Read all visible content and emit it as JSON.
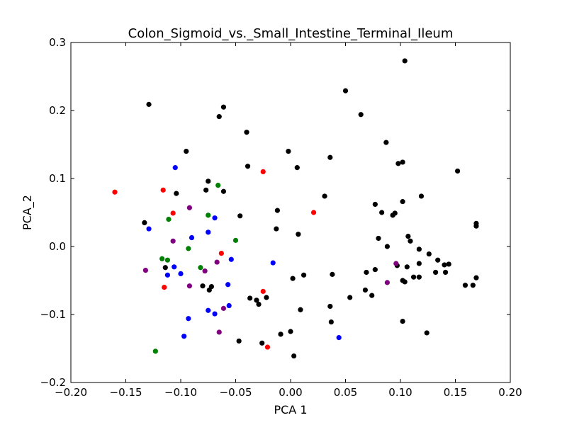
{
  "chart_data": {
    "type": "scatter",
    "title": "Colon_Sigmoid_vs._Small_Intestine_Terminal_Ileum",
    "xlabel": "PCA 1",
    "ylabel": "PCA_2",
    "xlim": [
      -0.2,
      0.2
    ],
    "ylim": [
      -0.2,
      0.3
    ],
    "xticks": [
      -0.2,
      -0.15,
      -0.1,
      -0.05,
      0.0,
      0.05,
      0.1,
      0.15,
      0.2
    ],
    "xtick_labels": [
      "−0.20",
      "−0.15",
      "−0.10",
      "−0.05",
      "0.00",
      "0.05",
      "0.10",
      "0.15",
      "0.20"
    ],
    "yticks": [
      -0.2,
      -0.1,
      0.0,
      0.1,
      0.2,
      0.3
    ],
    "ytick_labels": [
      "−0.2",
      "−0.1",
      "0.0",
      "0.1",
      "0.2",
      "0.3"
    ],
    "grid": false,
    "series": [
      {
        "color": "#000000",
        "points": [
          [
            -0.129,
            0.209
          ],
          [
            -0.061,
            0.205
          ],
          [
            -0.065,
            0.191
          ],
          [
            -0.04,
            0.168
          ],
          [
            -0.095,
            0.14
          ],
          [
            -0.075,
            0.096
          ],
          [
            -0.077,
            0.083
          ],
          [
            -0.061,
            0.081
          ],
          [
            -0.104,
            0.078
          ],
          [
            -0.039,
            0.118
          ],
          [
            -0.133,
            0.035
          ],
          [
            -0.046,
            0.045
          ],
          [
            -0.012,
            0.053
          ],
          [
            -0.013,
            0.026
          ],
          [
            0.007,
            0.018
          ],
          [
            -0.114,
            -0.031
          ],
          [
            -0.08,
            -0.058
          ],
          [
            -0.072,
            -0.059
          ],
          [
            -0.074,
            -0.064
          ],
          [
            -0.037,
            -0.076
          ],
          [
            -0.031,
            -0.079
          ],
          [
            -0.029,
            -0.085
          ],
          [
            -0.022,
            -0.075
          ],
          [
            -0.047,
            -0.139
          ],
          [
            -0.026,
            -0.142
          ],
          [
            -0.009,
            -0.129
          ],
          [
            0.0,
            -0.125
          ],
          [
            0.003,
            -0.161
          ],
          [
            0.009,
            -0.093
          ],
          [
            0.002,
            -0.047
          ],
          [
            0.012,
            -0.042
          ],
          [
            -0.002,
            0.14
          ],
          [
            0.006,
            0.116
          ],
          [
            0.036,
            0.131
          ],
          [
            0.031,
            0.074
          ],
          [
            0.05,
            0.229
          ],
          [
            0.064,
            0.194
          ],
          [
            0.087,
            0.153
          ],
          [
            0.104,
            0.273
          ],
          [
            0.098,
            0.122
          ],
          [
            0.102,
            0.124
          ],
          [
            0.152,
            0.111
          ],
          [
            0.119,
            0.074
          ],
          [
            0.102,
            0.066
          ],
          [
            0.077,
            0.062
          ],
          [
            0.083,
            0.05
          ],
          [
            0.093,
            0.046
          ],
          [
            0.095,
            0.049
          ],
          [
            0.08,
            0.012
          ],
          [
            0.088,
            0.0
          ],
          [
            0.107,
            0.015
          ],
          [
            0.109,
            0.008
          ],
          [
            0.117,
            -0.004
          ],
          [
            0.126,
            -0.011
          ],
          [
            0.134,
            -0.02
          ],
          [
            0.14,
            -0.027
          ],
          [
            0.144,
            -0.026
          ],
          [
            0.117,
            -0.025
          ],
          [
            0.106,
            -0.03
          ],
          [
            0.112,
            -0.045
          ],
          [
            0.117,
            -0.045
          ],
          [
            0.132,
            -0.038
          ],
          [
            0.141,
            -0.038
          ],
          [
            0.169,
            0.03
          ],
          [
            0.169,
            0.034
          ],
          [
            0.169,
            -0.046
          ],
          [
            0.159,
            -0.057
          ],
          [
            0.166,
            -0.057
          ],
          [
            0.102,
            -0.05
          ],
          [
            0.104,
            -0.052
          ],
          [
            0.097,
            -0.028
          ],
          [
            0.077,
            -0.034
          ],
          [
            0.069,
            -0.038
          ],
          [
            0.068,
            -0.064
          ],
          [
            0.074,
            -0.072
          ],
          [
            0.054,
            -0.075
          ],
          [
            0.038,
            -0.041
          ],
          [
            0.036,
            -0.088
          ],
          [
            0.037,
            -0.111
          ],
          [
            0.102,
            -0.11
          ],
          [
            0.124,
            -0.127
          ]
        ]
      },
      {
        "color": "#ff0000",
        "points": [
          [
            -0.16,
            0.08
          ],
          [
            -0.116,
            0.083
          ],
          [
            -0.107,
            0.049
          ],
          [
            -0.025,
            0.11
          ],
          [
            0.021,
            0.05
          ],
          [
            -0.063,
            -0.01
          ],
          [
            -0.115,
            -0.06
          ],
          [
            -0.025,
            -0.066
          ],
          [
            -0.021,
            -0.148
          ]
        ]
      },
      {
        "color": "#0000ff",
        "points": [
          [
            -0.105,
            0.116
          ],
          [
            -0.129,
            0.026
          ],
          [
            -0.069,
            0.042
          ],
          [
            -0.09,
            0.013
          ],
          [
            -0.075,
            0.021
          ],
          [
            -0.054,
            -0.019
          ],
          [
            -0.016,
            -0.024
          ],
          [
            -0.106,
            -0.03
          ],
          [
            -0.112,
            -0.042
          ],
          [
            -0.1,
            -0.04
          ],
          [
            -0.057,
            -0.056
          ],
          [
            -0.056,
            -0.087
          ],
          [
            -0.075,
            -0.094
          ],
          [
            -0.069,
            -0.099
          ],
          [
            -0.093,
            -0.106
          ],
          [
            -0.097,
            -0.132
          ],
          [
            0.044,
            -0.134
          ]
        ]
      },
      {
        "color": "#008000",
        "points": [
          [
            -0.066,
            0.09
          ],
          [
            -0.075,
            0.046
          ],
          [
            -0.111,
            0.04
          ],
          [
            -0.05,
            0.009
          ],
          [
            -0.093,
            -0.003
          ],
          [
            -0.117,
            -0.018
          ],
          [
            -0.112,
            -0.02
          ],
          [
            -0.082,
            -0.031
          ],
          [
            -0.123,
            -0.154
          ]
        ]
      },
      {
        "color": "#800080",
        "points": [
          [
            -0.092,
            0.057
          ],
          [
            -0.107,
            0.008
          ],
          [
            -0.132,
            -0.035
          ],
          [
            -0.078,
            -0.036
          ],
          [
            -0.067,
            -0.023
          ],
          [
            -0.092,
            -0.058
          ],
          [
            -0.061,
            -0.091
          ],
          [
            -0.065,
            -0.126
          ],
          [
            0.096,
            -0.025
          ],
          [
            0.088,
            -0.053
          ]
        ]
      }
    ]
  }
}
